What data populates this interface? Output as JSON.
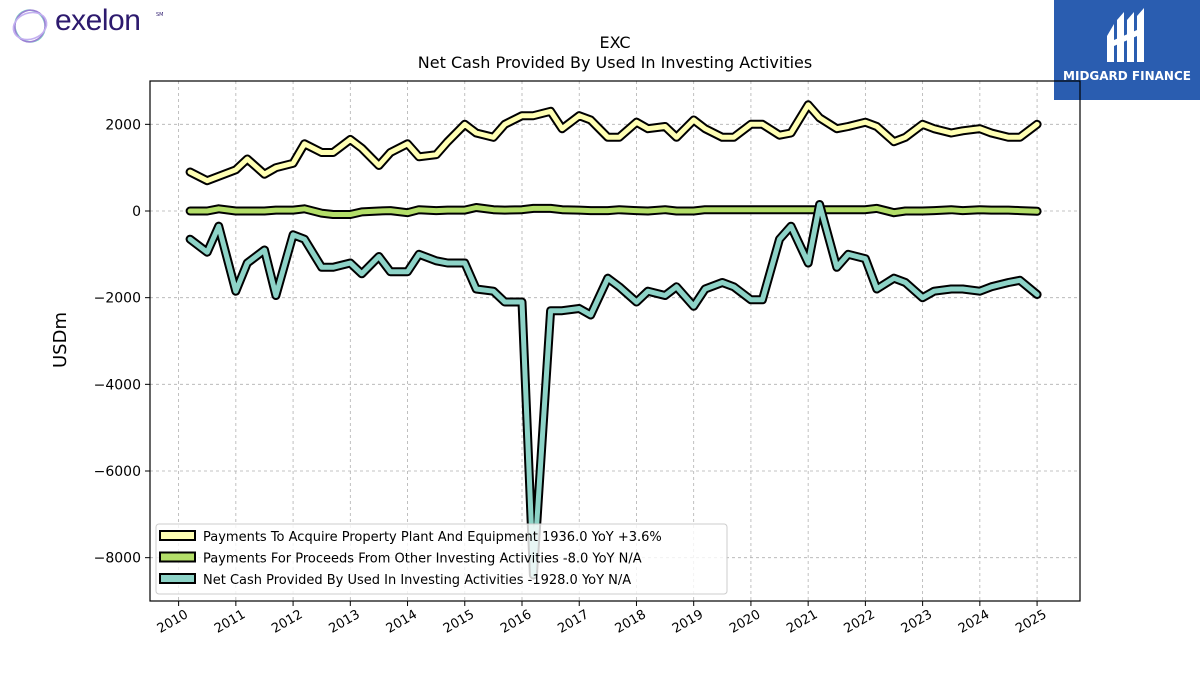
{
  "brand": {
    "logo_text": "exelon",
    "logo_mark": "SM",
    "badge_text": "MIDGARD FINANCE"
  },
  "chart_data": {
    "type": "line",
    "title": "EXC",
    "subtitle": "Net Cash Provided By Used In Investing Activities",
    "xlabel": "",
    "ylabel": "USDm",
    "xlim": [
      2009.5,
      2025.75
    ],
    "ylim": [
      -9000,
      3000
    ],
    "yticks": [
      -8000,
      -6000,
      -4000,
      -2000,
      0,
      2000
    ],
    "xticks": [
      "2010",
      "2011",
      "2012",
      "2013",
      "2014",
      "2015",
      "2016",
      "2017",
      "2018",
      "2019",
      "2020",
      "2021",
      "2022",
      "2023",
      "2024",
      "2025"
    ],
    "grid": true,
    "legend_position": "bottom-left",
    "x": [
      2010.2,
      2010.5,
      2010.7,
      2011.0,
      2011.2,
      2011.5,
      2011.7,
      2012.0,
      2012.2,
      2012.5,
      2012.7,
      2013.0,
      2013.2,
      2013.5,
      2013.7,
      2014.0,
      2014.2,
      2014.5,
      2014.7,
      2015.0,
      2015.2,
      2015.5,
      2015.7,
      2016.0,
      2016.2,
      2016.5,
      2016.7,
      2017.0,
      2017.2,
      2017.5,
      2017.7,
      2018.0,
      2018.2,
      2018.5,
      2018.7,
      2019.0,
      2019.2,
      2019.5,
      2019.7,
      2020.0,
      2020.2,
      2020.5,
      2020.7,
      2021.0,
      2021.2,
      2021.5,
      2021.7,
      2022.0,
      2022.2,
      2022.5,
      2022.7,
      2023.0,
      2023.2,
      2023.5,
      2023.7,
      2024.0,
      2024.2,
      2024.5,
      2024.7,
      2025.0
    ],
    "series": [
      {
        "name": "Payments To Acquire Property Plant And Equipment  1936.0 YoY +3.6%",
        "color": "#ffffb3",
        "values": [
          900,
          700,
          800,
          950,
          1200,
          850,
          1000,
          1100,
          1550,
          1350,
          1350,
          1650,
          1450,
          1050,
          1350,
          1550,
          1250,
          1300,
          1600,
          2000,
          1800,
          1700,
          2000,
          2200,
          2200,
          2300,
          1900,
          2200,
          2100,
          1700,
          1700,
          2050,
          1900,
          1950,
          1700,
          2100,
          1900,
          1700,
          1700,
          2000,
          2000,
          1750,
          1800,
          2450,
          2150,
          1900,
          1950,
          2050,
          1950,
          1600,
          1700,
          2000,
          1900,
          1800,
          1850,
          1900,
          1800,
          1700,
          1700,
          2000
        ]
      },
      {
        "name": "Payments For Proceeds From Other Investing Activities  -8.0 YoY N/A",
        "color": "#b3de69",
        "values": [
          0,
          0,
          50,
          0,
          0,
          0,
          20,
          20,
          50,
          -50,
          -80,
          -80,
          -20,
          0,
          10,
          -40,
          30,
          10,
          20,
          20,
          80,
          30,
          20,
          30,
          60,
          60,
          30,
          20,
          10,
          10,
          30,
          10,
          0,
          30,
          0,
          0,
          30,
          30,
          30,
          30,
          30,
          30,
          30,
          30,
          30,
          30,
          30,
          30,
          60,
          -40,
          0,
          0,
          10,
          30,
          10,
          30,
          20,
          20,
          10,
          -8
        ]
      },
      {
        "name": "Net Cash Provided By Used In Investing Activities  -1928.0 YoY N/A",
        "color": "#8dd3c7",
        "values": [
          -650,
          -950,
          -350,
          -1850,
          -1200,
          -900,
          -1950,
          -550,
          -650,
          -1300,
          -1300,
          -1200,
          -1450,
          -1050,
          -1400,
          -1400,
          -1000,
          -1150,
          -1200,
          -1200,
          -1800,
          -1850,
          -2100,
          -2100,
          -8400,
          -2300,
          -2300,
          -2250,
          -2400,
          -1550,
          -1750,
          -2100,
          -1850,
          -1950,
          -1750,
          -2200,
          -1800,
          -1650,
          -1750,
          -2050,
          -2050,
          -650,
          -350,
          -1200,
          150,
          -1300,
          -1000,
          -1100,
          -1800,
          -1550,
          -1650,
          -2000,
          -1850,
          -1800,
          -1800,
          -1850,
          -1750,
          -1650,
          -1600,
          -1928
        ]
      }
    ]
  }
}
